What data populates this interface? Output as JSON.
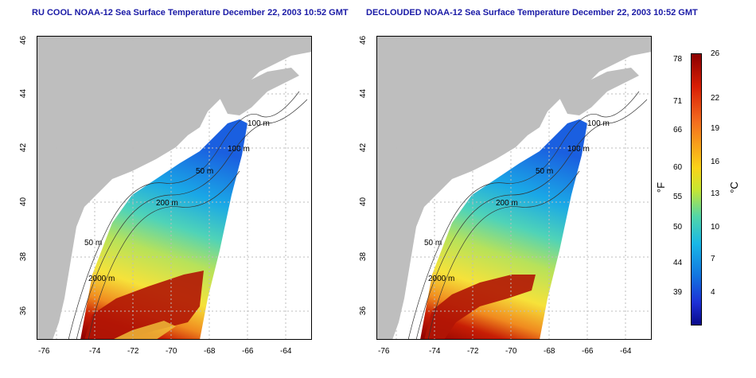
{
  "titles": {
    "left": "RU COOL NOAA-12 Sea Surface Temperature December 22, 2003 10:52 GMT",
    "right": "DECLOUDED NOAA-12 Sea Surface Temperature December 22, 2003 10:52 GMT"
  },
  "axes": {
    "x_ticks": [
      "-76",
      "-74",
      "-72",
      "-70",
      "-68",
      "-66",
      "-64"
    ],
    "y_ticks": [
      "46",
      "44",
      "42",
      "40",
      "38",
      "36"
    ]
  },
  "contour_labels": [
    "100 m",
    "100 m",
    "50 m",
    "200 m",
    "50 m",
    "2000 m"
  ],
  "colorbar": {
    "fahrenheit_unit": "°F",
    "celsius_unit": "°C",
    "fahrenheit_ticks": [
      "78",
      "71",
      "66",
      "60",
      "55",
      "50",
      "44",
      "39"
    ],
    "celsius_ticks": [
      "26",
      "22",
      "19",
      "16",
      "13",
      "10",
      "7",
      "4"
    ]
  },
  "colors": {
    "land": "#bebebe",
    "title": "#1a1aa6",
    "grid": "#bdbdbd"
  }
}
